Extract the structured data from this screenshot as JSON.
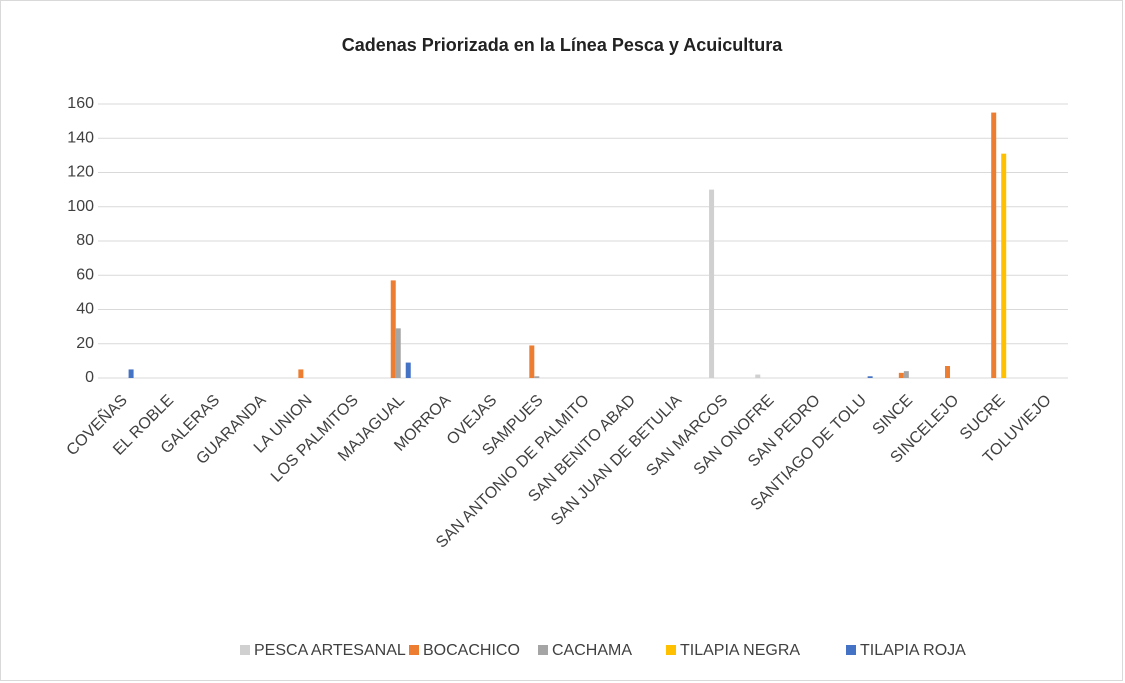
{
  "chart_data": {
    "type": "bar",
    "title": "Cadenas Priorizada en la Línea Pesca y Acuicultura",
    "categories": [
      "COVEÑAS",
      "EL ROBLE",
      "GALERAS",
      "GUARANDA",
      "LA UNION",
      "LOS PALMITOS",
      "MAJAGUAL",
      "MORROA",
      "OVEJAS",
      "SAMPUES",
      "SAN ANTONIO DE PALMITO",
      "SAN BENITO ABAD",
      "SAN JUAN DE BETULIA",
      "SAN MARCOS",
      "SAN ONOFRE",
      "SAN PEDRO",
      "SANTIAGO DE TOLU",
      "SINCE",
      "SINCELEJO",
      "SUCRE",
      "TOLUVIEJO"
    ],
    "series": [
      {
        "name": "PESCA ARTESANAL",
        "color": "#d0d0d0",
        "values": [
          0,
          0,
          0,
          0,
          0,
          0,
          0,
          0,
          0,
          0,
          0,
          0,
          0,
          110,
          2,
          0,
          0,
          0,
          0,
          0,
          0
        ]
      },
      {
        "name": "BOCACHICO",
        "color": "#ed7d31",
        "values": [
          0,
          0,
          0,
          0,
          5,
          0,
          57,
          0,
          0,
          19,
          0,
          0,
          0,
          0,
          0,
          0,
          0,
          3,
          7,
          155,
          0
        ]
      },
      {
        "name": "CACHAMA",
        "color": "#a5a5a5",
        "values": [
          0,
          0,
          0,
          0,
          0,
          0,
          29,
          0,
          0,
          1,
          0,
          0,
          0,
          0,
          0,
          0,
          0,
          4,
          0,
          0,
          0
        ]
      },
      {
        "name": "TILAPIA NEGRA",
        "color": "#ffc000",
        "values": [
          0,
          0,
          0,
          0,
          0,
          0,
          0,
          0,
          0,
          0,
          0,
          0,
          0,
          0,
          0,
          0,
          0,
          0,
          0,
          131,
          0
        ]
      },
      {
        "name": "TILAPIA ROJA",
        "color": "#4472c4",
        "values": [
          5,
          0,
          0,
          0,
          0,
          0,
          9,
          0,
          0,
          0,
          0,
          0,
          0,
          0,
          0,
          0,
          1,
          0,
          0,
          0,
          0
        ]
      }
    ],
    "ylim": [
      0,
      160
    ],
    "yticks": [
      0,
      20,
      40,
      60,
      80,
      100,
      120,
      140,
      160
    ],
    "grid": true,
    "legend": "bottom"
  }
}
